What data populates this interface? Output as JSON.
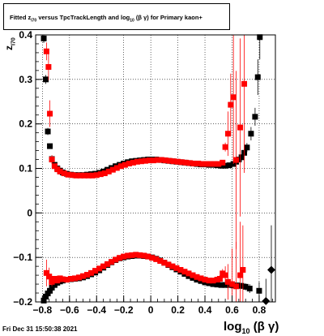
{
  "chart_data": {
    "type": "scatter",
    "title": {
      "prefix": "Fitted",
      "z": "z",
      "z_sub": "I70",
      "middle": "versus TpcTrackLength and log",
      "log_sub": "10",
      "suffix": "(β  γ) for Primary kaon+"
    },
    "xlabel": {
      "main": "log",
      "sub": "10",
      "tail": "(β γ)"
    },
    "ylabel": {
      "main": "z",
      "sub": "I70"
    },
    "date_stamp": "Fri Dec 31 15:50:38 2021",
    "xlim": [
      -0.85,
      0.92
    ],
    "ylim": [
      -0.2,
      0.4
    ],
    "x_ticks": [
      "−0.8",
      "−0.6",
      "−0.4",
      "−0.2",
      "0",
      "0.2",
      "0.4",
      "0.6",
      "0.8"
    ],
    "x_tick_values": [
      -0.8,
      -0.6,
      -0.4,
      -0.2,
      0,
      0.2,
      0.4,
      0.6,
      0.8
    ],
    "y_ticks": [
      "−0.2",
      "−0.1",
      "0",
      "0.1",
      "0.2",
      "0.3",
      "0.4"
    ],
    "y_tick_values": [
      -0.2,
      -0.1,
      0,
      0.1,
      0.2,
      0.3,
      0.4
    ],
    "grid": true,
    "colors": {
      "series_black": "#000000",
      "series_red": "#ff0000"
    },
    "series": [
      {
        "marker": "square",
        "color": "#000000",
        "points": [
          [
            -0.79,
            0.392,
            0.01
          ],
          [
            -0.775,
            0.3,
            0.01
          ],
          [
            -0.76,
            0.183,
            0.008
          ],
          [
            -0.745,
            0.15,
            0.006
          ],
          [
            -0.73,
            0.121,
            0.005
          ],
          [
            -0.71,
            0.108,
            0.004
          ],
          [
            -0.69,
            0.1,
            0.003
          ],
          [
            -0.67,
            0.095,
            0.003
          ],
          [
            -0.65,
            0.091,
            0.002
          ],
          [
            -0.62,
            0.088,
            0.002
          ],
          [
            -0.59,
            0.086,
            0.002
          ],
          [
            -0.56,
            0.085,
            0.002
          ],
          [
            -0.53,
            0.085,
            0.002
          ],
          [
            -0.5,
            0.085,
            0.002
          ],
          [
            -0.47,
            0.086,
            0.002
          ],
          [
            -0.44,
            0.087,
            0.002
          ],
          [
            -0.41,
            0.088,
            0.002
          ],
          [
            -0.38,
            0.09,
            0.002
          ],
          [
            -0.35,
            0.093,
            0.002
          ],
          [
            -0.32,
            0.097,
            0.002
          ],
          [
            -0.29,
            0.101,
            0.002
          ],
          [
            -0.26,
            0.105,
            0.002
          ],
          [
            -0.23,
            0.108,
            0.002
          ],
          [
            -0.2,
            0.111,
            0.002
          ],
          [
            -0.17,
            0.114,
            0.002
          ],
          [
            -0.14,
            0.116,
            0.002
          ],
          [
            -0.11,
            0.117,
            0.002
          ],
          [
            -0.08,
            0.118,
            0.002
          ],
          [
            -0.05,
            0.119,
            0.002
          ],
          [
            -0.02,
            0.12,
            0.002
          ],
          [
            0.01,
            0.12,
            0.002
          ],
          [
            0.04,
            0.12,
            0.002
          ],
          [
            0.07,
            0.119,
            0.002
          ],
          [
            0.1,
            0.118,
            0.002
          ],
          [
            0.13,
            0.117,
            0.002
          ],
          [
            0.16,
            0.116,
            0.002
          ],
          [
            0.19,
            0.115,
            0.002
          ],
          [
            0.22,
            0.114,
            0.002
          ],
          [
            0.25,
            0.113,
            0.002
          ],
          [
            0.28,
            0.112,
            0.002
          ],
          [
            0.31,
            0.111,
            0.002
          ],
          [
            0.34,
            0.11,
            0.002
          ],
          [
            0.37,
            0.109,
            0.002
          ],
          [
            0.4,
            0.109,
            0.002
          ],
          [
            0.43,
            0.108,
            0.002
          ],
          [
            0.46,
            0.108,
            0.002
          ],
          [
            0.49,
            0.107,
            0.002
          ],
          [
            0.52,
            0.106,
            0.002
          ],
          [
            0.55,
            0.106,
            0.003
          ],
          [
            0.58,
            0.107,
            0.003
          ],
          [
            0.61,
            0.11,
            0.004
          ],
          [
            0.63,
            0.115,
            0.005
          ],
          [
            0.65,
            0.12,
            0.006
          ],
          [
            0.67,
            0.125,
            0.007
          ],
          [
            0.69,
            0.135,
            0.008
          ],
          [
            0.71,
            0.147,
            0.01
          ],
          [
            0.74,
            0.178,
            0.015
          ],
          [
            0.77,
            0.216,
            0.02
          ],
          [
            0.79,
            0.305,
            0.04
          ],
          [
            0.805,
            0.395,
            0.05
          ],
          [
            -0.79,
            -0.197,
            0.01
          ],
          [
            -0.775,
            -0.188,
            0.008
          ],
          [
            -0.76,
            -0.181,
            0.006
          ],
          [
            -0.745,
            -0.175,
            0.005
          ],
          [
            -0.73,
            -0.168,
            0.004
          ],
          [
            -0.71,
            -0.162,
            0.004
          ],
          [
            -0.69,
            -0.157,
            0.003
          ],
          [
            -0.67,
            -0.154,
            0.003
          ],
          [
            -0.65,
            -0.152,
            0.003
          ],
          [
            -0.62,
            -0.15,
            0.003
          ],
          [
            -0.59,
            -0.149,
            0.003
          ],
          [
            -0.56,
            -0.148,
            0.003
          ],
          [
            -0.53,
            -0.147,
            0.003
          ],
          [
            -0.5,
            -0.145,
            0.003
          ],
          [
            -0.47,
            -0.142,
            0.003
          ],
          [
            -0.44,
            -0.138,
            0.003
          ],
          [
            -0.41,
            -0.134,
            0.003
          ],
          [
            -0.38,
            -0.129,
            0.003
          ],
          [
            -0.35,
            -0.123,
            0.003
          ],
          [
            -0.32,
            -0.117,
            0.003
          ],
          [
            -0.29,
            -0.111,
            0.003
          ],
          [
            -0.26,
            -0.106,
            0.003
          ],
          [
            -0.23,
            -0.102,
            0.003
          ],
          [
            -0.2,
            -0.1,
            0.003
          ],
          [
            -0.17,
            -0.098,
            0.003
          ],
          [
            -0.14,
            -0.097,
            0.003
          ],
          [
            -0.11,
            -0.096,
            0.003
          ],
          [
            -0.08,
            -0.096,
            0.003
          ],
          [
            -0.05,
            -0.097,
            0.003
          ],
          [
            -0.02,
            -0.098,
            0.003
          ],
          [
            0.01,
            -0.1,
            0.003
          ],
          [
            0.04,
            -0.103,
            0.003
          ],
          [
            0.07,
            -0.107,
            0.003
          ],
          [
            0.1,
            -0.112,
            0.003
          ],
          [
            0.13,
            -0.117,
            0.003
          ],
          [
            0.16,
            -0.122,
            0.003
          ],
          [
            0.19,
            -0.127,
            0.003
          ],
          [
            0.22,
            -0.132,
            0.003
          ],
          [
            0.25,
            -0.137,
            0.003
          ],
          [
            0.28,
            -0.142,
            0.003
          ],
          [
            0.31,
            -0.146,
            0.003
          ],
          [
            0.34,
            -0.15,
            0.003
          ],
          [
            0.37,
            -0.153,
            0.003
          ],
          [
            0.4,
            -0.156,
            0.003
          ],
          [
            0.43,
            -0.158,
            0.003
          ],
          [
            0.46,
            -0.16,
            0.003
          ],
          [
            0.49,
            -0.161,
            0.003
          ],
          [
            0.52,
            -0.162,
            0.003
          ],
          [
            0.55,
            -0.162,
            0.004
          ],
          [
            0.58,
            -0.162,
            0.004
          ],
          [
            0.61,
            -0.163,
            0.005
          ],
          [
            0.64,
            -0.163,
            0.006
          ],
          [
            0.67,
            -0.164,
            0.007
          ],
          [
            0.7,
            -0.166,
            0.008
          ],
          [
            0.73,
            -0.17,
            0.01
          ],
          [
            0.8,
            -0.175,
            0.02
          ],
          [
            0.85,
            -0.198,
            0.05
          ],
          [
            0.89,
            -0.128,
            0.1
          ]
        ]
      },
      {
        "marker": "square",
        "color": "#ff0000",
        "points": [
          [
            -0.77,
            0.363,
            0.02
          ],
          [
            -0.755,
            0.328,
            0.03
          ],
          [
            -0.745,
            0.223,
            0.03
          ],
          [
            -0.73,
            0.12,
            0.01
          ],
          [
            -0.71,
            0.105,
            0.006
          ],
          [
            -0.69,
            0.098,
            0.004
          ],
          [
            -0.67,
            0.093,
            0.003
          ],
          [
            -0.64,
            0.089,
            0.002
          ],
          [
            -0.61,
            0.086,
            0.002
          ],
          [
            -0.58,
            0.085,
            0.002
          ],
          [
            -0.55,
            0.084,
            0.002
          ],
          [
            -0.52,
            0.084,
            0.002
          ],
          [
            -0.49,
            0.084,
            0.002
          ],
          [
            -0.46,
            0.084,
            0.002
          ],
          [
            -0.43,
            0.084,
            0.002
          ],
          [
            -0.4,
            0.085,
            0.002
          ],
          [
            -0.37,
            0.087,
            0.002
          ],
          [
            -0.34,
            0.089,
            0.002
          ],
          [
            -0.31,
            0.093,
            0.002
          ],
          [
            -0.28,
            0.097,
            0.002
          ],
          [
            -0.25,
            0.101,
            0.002
          ],
          [
            -0.22,
            0.105,
            0.002
          ],
          [
            -0.19,
            0.108,
            0.002
          ],
          [
            -0.16,
            0.111,
            0.002
          ],
          [
            -0.13,
            0.113,
            0.002
          ],
          [
            -0.1,
            0.115,
            0.002
          ],
          [
            -0.07,
            0.116,
            0.002
          ],
          [
            -0.04,
            0.117,
            0.002
          ],
          [
            -0.01,
            0.118,
            0.002
          ],
          [
            0.02,
            0.118,
            0.002
          ],
          [
            0.05,
            0.119,
            0.002
          ],
          [
            0.08,
            0.119,
            0.002
          ],
          [
            0.11,
            0.118,
            0.002
          ],
          [
            0.14,
            0.117,
            0.002
          ],
          [
            0.17,
            0.116,
            0.002
          ],
          [
            0.2,
            0.115,
            0.002
          ],
          [
            0.23,
            0.114,
            0.002
          ],
          [
            0.26,
            0.113,
            0.002
          ],
          [
            0.29,
            0.112,
            0.002
          ],
          [
            0.32,
            0.111,
            0.002
          ],
          [
            0.35,
            0.111,
            0.002
          ],
          [
            0.38,
            0.11,
            0.002
          ],
          [
            0.41,
            0.11,
            0.003
          ],
          [
            0.44,
            0.11,
            0.003
          ],
          [
            0.47,
            0.11,
            0.003
          ],
          [
            0.5,
            0.11,
            0.003
          ],
          [
            0.53,
            0.113,
            0.004
          ],
          [
            0.55,
            0.148,
            0.01
          ],
          [
            0.57,
            0.178,
            0.05
          ],
          [
            0.59,
            0.243,
            0.07
          ],
          [
            0.61,
            0.26,
            0.15
          ],
          [
            0.63,
            0.119,
            0.2
          ],
          [
            0.66,
            0.192,
            0.2
          ],
          [
            0.69,
            0.29,
            0.2
          ],
          [
            -0.77,
            -0.135,
            0.03
          ],
          [
            -0.75,
            -0.143,
            0.02
          ],
          [
            -0.73,
            -0.155,
            0.01
          ],
          [
            -0.71,
            -0.148,
            0.006
          ],
          [
            -0.69,
            -0.152,
            0.005
          ],
          [
            -0.67,
            -0.147,
            0.004
          ],
          [
            -0.65,
            -0.149,
            0.004
          ],
          [
            -0.62,
            -0.15,
            0.003
          ],
          [
            -0.59,
            -0.148,
            0.003
          ],
          [
            -0.56,
            -0.147,
            0.003
          ],
          [
            -0.53,
            -0.145,
            0.003
          ],
          [
            -0.5,
            -0.142,
            0.003
          ],
          [
            -0.47,
            -0.139,
            0.003
          ],
          [
            -0.44,
            -0.135,
            0.003
          ],
          [
            -0.41,
            -0.13,
            0.003
          ],
          [
            -0.38,
            -0.125,
            0.003
          ],
          [
            -0.35,
            -0.12,
            0.003
          ],
          [
            -0.32,
            -0.115,
            0.003
          ],
          [
            -0.29,
            -0.11,
            0.003
          ],
          [
            -0.26,
            -0.105,
            0.003
          ],
          [
            -0.23,
            -0.101,
            0.003
          ],
          [
            -0.2,
            -0.098,
            0.003
          ],
          [
            -0.17,
            -0.096,
            0.003
          ],
          [
            -0.14,
            -0.095,
            0.003
          ],
          [
            -0.11,
            -0.094,
            0.003
          ],
          [
            -0.08,
            -0.095,
            0.003
          ],
          [
            -0.05,
            -0.096,
            0.003
          ],
          [
            -0.02,
            -0.098,
            0.003
          ],
          [
            0.01,
            -0.101,
            0.003
          ],
          [
            0.04,
            -0.104,
            0.003
          ],
          [
            0.07,
            -0.108,
            0.003
          ],
          [
            0.1,
            -0.112,
            0.003
          ],
          [
            0.13,
            -0.116,
            0.003
          ],
          [
            0.16,
            -0.12,
            0.003
          ],
          [
            0.19,
            -0.124,
            0.003
          ],
          [
            0.22,
            -0.128,
            0.003
          ],
          [
            0.25,
            -0.132,
            0.003
          ],
          [
            0.28,
            -0.136,
            0.003
          ],
          [
            0.31,
            -0.14,
            0.003
          ],
          [
            0.34,
            -0.144,
            0.003
          ],
          [
            0.37,
            -0.147,
            0.004
          ],
          [
            0.4,
            -0.15,
            0.004
          ],
          [
            0.43,
            -0.152,
            0.004
          ],
          [
            0.46,
            -0.152,
            0.005
          ],
          [
            0.49,
            -0.15,
            0.006
          ],
          [
            0.51,
            -0.148,
            0.008
          ],
          [
            0.53,
            -0.136,
            0.01
          ],
          [
            0.55,
            -0.14,
            0.02
          ],
          [
            0.57,
            -0.155,
            0.04
          ],
          [
            0.6,
            -0.16,
            0.08
          ],
          [
            0.63,
            -0.165,
            0.1
          ],
          [
            0.66,
            -0.14,
            0.12
          ],
          [
            0.68,
            -0.128,
            0.1
          ]
        ]
      }
    ]
  }
}
